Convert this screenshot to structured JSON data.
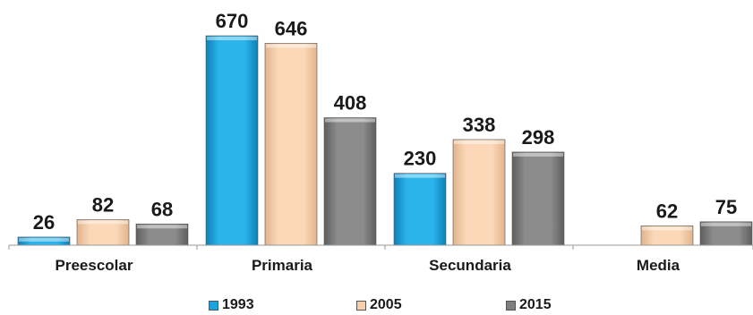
{
  "chart_data": {
    "type": "bar",
    "categories": [
      "Preescolar",
      "Primaria",
      "Secundaria",
      "Media"
    ],
    "series": [
      {
        "name": "1993",
        "color": "#1aa3dc",
        "values": [
          26,
          670,
          230,
          null
        ]
      },
      {
        "name": "2005",
        "color": "#f9cfab",
        "values": [
          82,
          646,
          338,
          62
        ]
      },
      {
        "name": "2015",
        "color": "#7f7f7f",
        "values": [
          68,
          408,
          298,
          75
        ]
      }
    ],
    "value_labels": [
      [
        "26",
        "670",
        "230",
        ""
      ],
      [
        "82",
        "646",
        "338",
        "62"
      ],
      [
        "68",
        "408",
        "298",
        "75"
      ]
    ],
    "title": "",
    "xlabel": "",
    "ylabel": "",
    "ylim": [
      0,
      700
    ],
    "grid": false,
    "legend_position": "bottom"
  }
}
